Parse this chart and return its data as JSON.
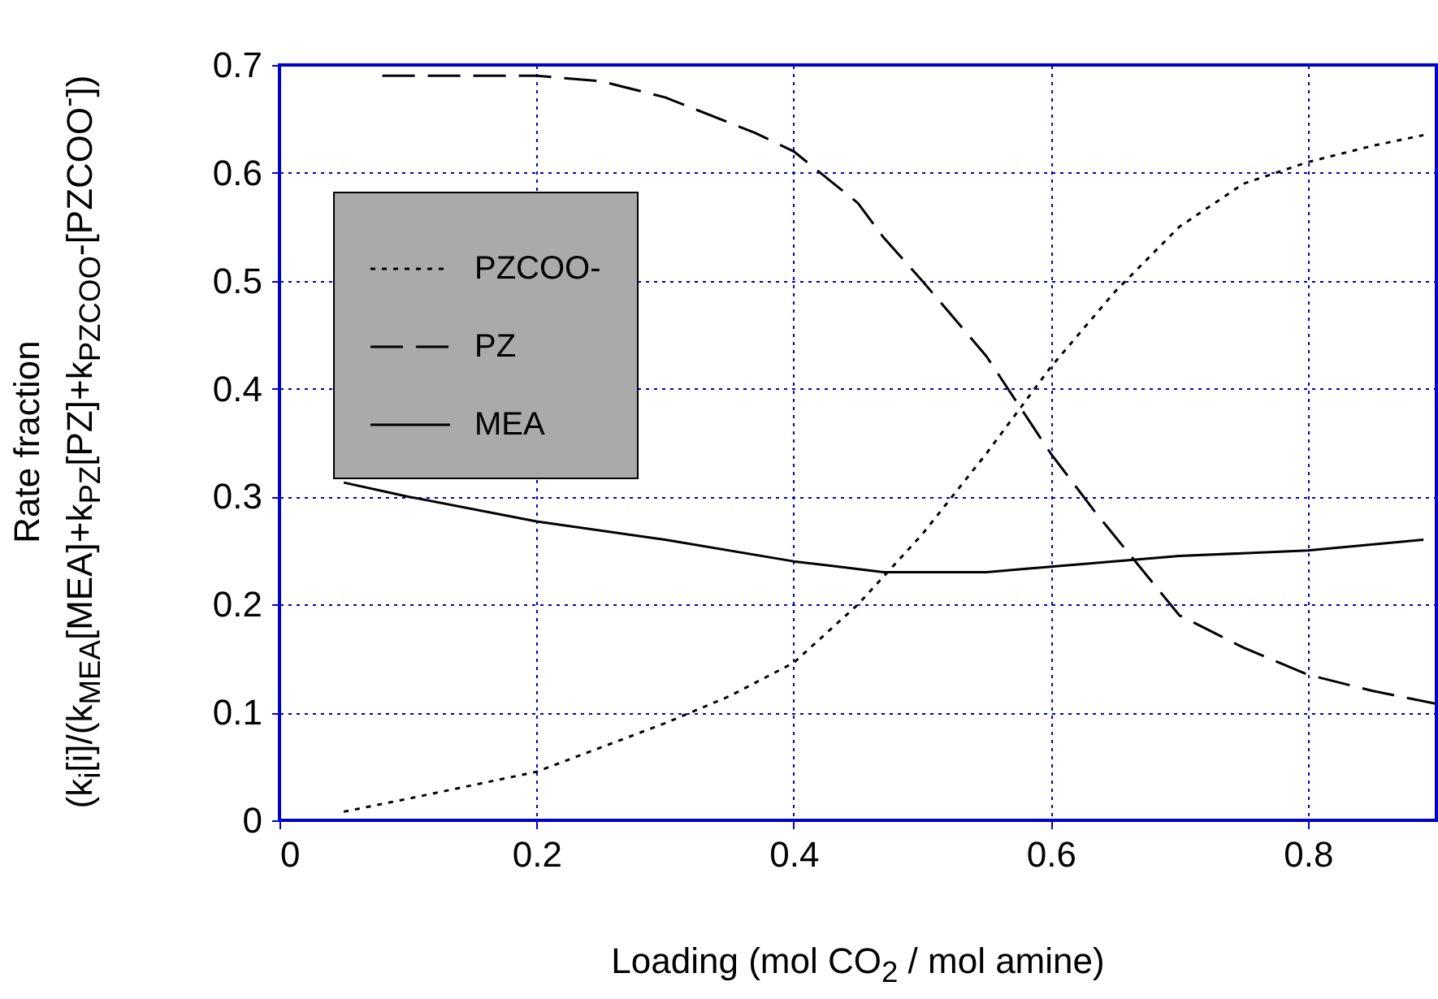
{
  "chart_data": {
    "type": "line",
    "xlabel": "Loading (mol CO$_{2}$ / mol amine)",
    "ylabel": "Rate fraction\n(k$_{i}$[i]/(k$_{MEA}$[MEA]+k$_{PZ}$[PZ]+k$_{PZCOO}$-[PZCOO$^{-}$])",
    "xlim": [
      0,
      0.9
    ],
    "ylim": [
      0,
      0.7
    ],
    "xticks": [
      0,
      0.2,
      0.4,
      0.6,
      0.8
    ],
    "yticks": [
      0,
      0.1,
      0.2,
      0.3,
      0.4,
      0.5,
      0.6,
      0.7
    ],
    "grid": true,
    "legend": "top left",
    "series": [
      {
        "name": "PZCOO-",
        "color": "#000000",
        "line_style": "dotted",
        "x": [
          0.05,
          0.1,
          0.2,
          0.3,
          0.35,
          0.4,
          0.45,
          0.5,
          0.55,
          0.6,
          0.65,
          0.7,
          0.75,
          0.8,
          0.85,
          0.89
        ],
        "values": [
          0.008,
          0.02,
          0.045,
          0.09,
          0.115,
          0.146,
          0.2,
          0.265,
          0.34,
          0.42,
          0.49,
          0.55,
          0.59,
          0.61,
          0.625,
          0.635
        ]
      },
      {
        "name": "PZ",
        "color": "#000000",
        "line_style": "dashed",
        "x": [
          0.08,
          0.15,
          0.2,
          0.25,
          0.3,
          0.37,
          0.4,
          0.45,
          0.47,
          0.5,
          0.55,
          0.6,
          0.635,
          0.7,
          0.75,
          0.8,
          0.85,
          0.9
        ],
        "values": [
          0.69,
          0.69,
          0.69,
          0.685,
          0.67,
          0.637,
          0.62,
          0.572,
          0.54,
          0.5,
          0.43,
          0.34,
          0.285,
          0.19,
          0.16,
          0.135,
          0.12,
          0.108
        ]
      },
      {
        "name": "MEA",
        "color": "#000000",
        "line_style": "solid",
        "x": [
          0.05,
          0.1,
          0.2,
          0.3,
          0.4,
          0.47,
          0.55,
          0.6,
          0.7,
          0.8,
          0.89
        ],
        "values": [
          0.313,
          0.3,
          0.277,
          0.26,
          0.24,
          0.23,
          0.23,
          0.235,
          0.245,
          0.25,
          0.26
        ]
      }
    ]
  }
}
